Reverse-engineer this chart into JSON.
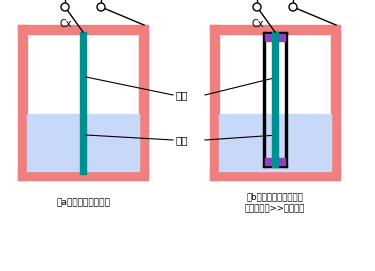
{
  "bg_color": "#ffffff",
  "pink_color": "#f08080",
  "teal_color": "#009090",
  "purple_color": "#9040c0",
  "light_blue_color": "#c8d8f8",
  "red_circle_color": "#dd1111",
  "wire_color": "#000000",
  "title_a": "（a）容器为金属材料",
  "title_b": "（b）容器为非金属材料\n或容器直径>>电极直径",
  "label_cx": "Cx",
  "label_dianji": "电极",
  "label_rongqi": "容器"
}
